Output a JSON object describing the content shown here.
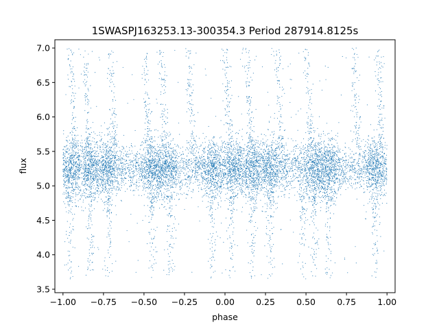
{
  "chart_data": {
    "type": "scatter",
    "title": "1SWASPJ163253.13-300354.3 Period 287914.8125s",
    "xlabel": "phase",
    "ylabel": "flux",
    "xlim": [
      -1.05,
      1.05
    ],
    "ylim": [
      3.45,
      7.12
    ],
    "xticks": [
      -1.0,
      -0.75,
      -0.5,
      -0.25,
      0.0,
      0.25,
      0.5,
      0.75,
      1.0
    ],
    "xtick_labels": [
      "−1.00",
      "−0.75",
      "−0.50",
      "−0.25",
      "0.00",
      "0.25",
      "0.50",
      "0.75",
      "1.00"
    ],
    "yticks": [
      3.5,
      4.0,
      4.5,
      5.0,
      5.5,
      6.0,
      6.5,
      7.0
    ],
    "ytick_labels": [
      "3.5",
      "4.0",
      "4.5",
      "5.0",
      "5.5",
      "6.0",
      "6.5",
      "7.0"
    ],
    "grid": false,
    "series": [
      {
        "color": "#1f77b4",
        "x_range": [
          -1.0,
          1.0
        ],
        "baseline_flux": 5.25,
        "baseline_spread": 0.18,
        "flux_range": [
          3.62,
          7.0
        ],
        "phase_folded_repeat": 1.0,
        "dense_clusters_phase": [
          -0.95,
          -0.83,
          -0.72,
          -0.45,
          -0.36,
          -0.07,
          0.05,
          0.17,
          0.28,
          0.55,
          0.64,
          0.93
        ],
        "upward_streaks_phase": [
          -0.93,
          -0.84,
          -0.68,
          -0.47,
          -0.37,
          -0.2,
          0.03,
          0.16,
          0.35,
          0.53,
          0.82,
          0.97
        ],
        "downward_streaks_phase": [
          -0.96,
          -0.83,
          -0.72,
          -0.45,
          -0.34,
          -0.08,
          0.04,
          0.17,
          0.28,
          0.48,
          0.55,
          0.64,
          0.93
        ]
      }
    ]
  }
}
